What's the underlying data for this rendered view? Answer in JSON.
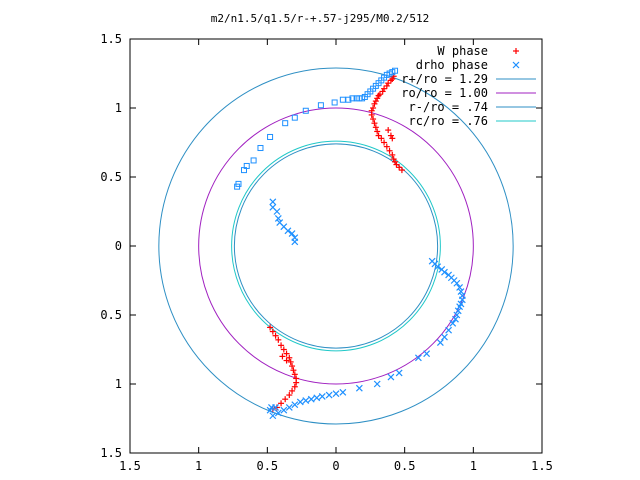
{
  "chart_data": {
    "type": "scatter",
    "title": "m2/n1.5/q1.5/r-+.57-j295/M0.2/512",
    "xlabel": "",
    "ylabel": "",
    "xlim": [
      -1.5,
      1.5
    ],
    "ylim": [
      -1.5,
      1.5
    ],
    "grid": false,
    "legend_position": "top-right",
    "xtick_values": [
      -1.5,
      -1,
      -0.5,
      0,
      0.5,
      1,
      1.5
    ],
    "xtick_labels": [
      "1.5",
      "1",
      "0.5",
      "0",
      "0.5",
      "1",
      "1.5"
    ],
    "ytick_values": [
      1.5,
      1,
      0.5,
      0,
      -0.5,
      -1,
      -1.5
    ],
    "ytick_labels": [
      "1.5",
      "1",
      "0.5",
      "0",
      "0.5",
      "1",
      "1.5"
    ],
    "circles": [
      {
        "name": "r+/ro = 1.29",
        "radius": 1.29,
        "color": "#2e8fc4"
      },
      {
        "name": "ro/ro = 1.00",
        "radius": 1.0,
        "color": "#a020c0"
      },
      {
        "name": "r-/ro = .74",
        "radius": 0.74,
        "color": "#2e8fc4"
      },
      {
        "name": "rc/ro = .76",
        "radius": 0.76,
        "color": "#20c8c8"
      }
    ],
    "series": [
      {
        "name": "W phase",
        "marker": "plus",
        "color": "#ff0000",
        "points": [
          [
            0.48,
            0.55
          ],
          [
            0.46,
            0.57
          ],
          [
            0.44,
            0.59
          ],
          [
            0.43,
            0.61
          ],
          [
            0.42,
            0.63
          ],
          [
            0.41,
            0.66
          ],
          [
            0.39,
            0.69
          ],
          [
            0.37,
            0.72
          ],
          [
            0.35,
            0.75
          ],
          [
            0.33,
            0.78
          ],
          [
            0.31,
            0.8
          ],
          [
            0.3,
            0.83
          ],
          [
            0.29,
            0.86
          ],
          [
            0.28,
            0.89
          ],
          [
            0.27,
            0.92
          ],
          [
            0.26,
            0.95
          ],
          [
            0.26,
            0.98
          ],
          [
            0.27,
            1.0
          ],
          [
            0.28,
            1.03
          ],
          [
            0.29,
            1.05
          ],
          [
            0.3,
            1.07
          ],
          [
            0.31,
            1.09
          ],
          [
            0.32,
            1.1
          ],
          [
            0.34,
            1.12
          ],
          [
            0.35,
            1.14
          ],
          [
            0.37,
            1.16
          ],
          [
            0.38,
            1.18
          ],
          [
            0.4,
            1.2
          ],
          [
            0.41,
            1.21
          ],
          [
            0.42,
            1.23
          ],
          [
            0.4,
            0.8
          ],
          [
            0.41,
            0.78
          ],
          [
            0.38,
            0.84
          ],
          [
            -0.48,
            -0.59
          ],
          [
            -0.46,
            -0.62
          ],
          [
            -0.44,
            -0.65
          ],
          [
            -0.42,
            -0.68
          ],
          [
            -0.4,
            -0.72
          ],
          [
            -0.38,
            -0.75
          ],
          [
            -0.36,
            -0.78
          ],
          [
            -0.34,
            -0.81
          ],
          [
            -0.33,
            -0.84
          ],
          [
            -0.32,
            -0.87
          ],
          [
            -0.31,
            -0.9
          ],
          [
            -0.3,
            -0.93
          ],
          [
            -0.29,
            -0.96
          ],
          [
            -0.29,
            -0.99
          ],
          [
            -0.3,
            -1.02
          ],
          [
            -0.32,
            -1.05
          ],
          [
            -0.34,
            -1.08
          ],
          [
            -0.37,
            -1.11
          ],
          [
            -0.4,
            -1.14
          ],
          [
            -0.43,
            -1.17
          ],
          [
            -0.46,
            -1.18
          ],
          [
            -0.36,
            -0.83
          ],
          [
            -0.39,
            -0.8
          ]
        ]
      },
      {
        "name": "drho phase",
        "marker": "cross",
        "color": "#1e90ff",
        "points": [
          [
            0.7,
            -0.11
          ],
          [
            0.72,
            -0.13
          ],
          [
            0.74,
            -0.15
          ],
          [
            0.77,
            -0.17
          ],
          [
            0.79,
            -0.19
          ],
          [
            0.82,
            -0.21
          ],
          [
            0.84,
            -0.23
          ],
          [
            0.86,
            -0.25
          ],
          [
            0.88,
            -0.27
          ],
          [
            0.9,
            -0.3
          ],
          [
            0.91,
            -0.33
          ],
          [
            0.92,
            -0.36
          ],
          [
            0.92,
            -0.39
          ],
          [
            0.91,
            -0.42
          ],
          [
            0.9,
            -0.44
          ],
          [
            0.89,
            -0.47
          ],
          [
            0.88,
            -0.5
          ],
          [
            0.87,
            -0.53
          ],
          [
            0.85,
            -0.56
          ],
          [
            0.82,
            -0.61
          ],
          [
            0.79,
            -0.66
          ],
          [
            0.76,
            -0.7
          ],
          [
            0.66,
            -0.78
          ],
          [
            0.6,
            -0.81
          ],
          [
            0.46,
            -0.92
          ],
          [
            0.4,
            -0.95
          ],
          [
            0.3,
            -1.0
          ],
          [
            0.17,
            -1.03
          ],
          [
            0.05,
            -1.06
          ],
          [
            0.0,
            -1.07
          ],
          [
            -0.05,
            -1.08
          ],
          [
            -0.1,
            -1.09
          ],
          [
            -0.14,
            -1.1
          ],
          [
            -0.18,
            -1.11
          ],
          [
            -0.22,
            -1.12
          ],
          [
            -0.26,
            -1.13
          ],
          [
            -0.3,
            -1.15
          ],
          [
            -0.34,
            -1.17
          ],
          [
            -0.38,
            -1.19
          ],
          [
            -0.42,
            -1.21
          ],
          [
            -0.46,
            -1.23
          ],
          [
            -0.48,
            -1.19
          ],
          [
            -0.47,
            -1.17
          ],
          [
            -0.44,
            -1.17
          ],
          [
            -0.43,
            0.25
          ],
          [
            -0.42,
            0.2
          ],
          [
            -0.41,
            0.17
          ],
          [
            -0.38,
            0.14
          ],
          [
            -0.35,
            0.11
          ],
          [
            -0.32,
            0.09
          ],
          [
            -0.3,
            0.06
          ],
          [
            -0.3,
            0.03
          ],
          [
            -0.46,
            0.32
          ],
          [
            -0.46,
            0.28
          ]
        ]
      },
      {
        "name": "",
        "marker": "square",
        "color": "#1e90ff",
        "points": [
          [
            -0.72,
            0.43
          ],
          [
            -0.71,
            0.45
          ],
          [
            -0.67,
            0.55
          ],
          [
            -0.65,
            0.58
          ],
          [
            -0.6,
            0.62
          ],
          [
            -0.55,
            0.71
          ],
          [
            -0.48,
            0.79
          ],
          [
            -0.37,
            0.89
          ],
          [
            -0.3,
            0.93
          ],
          [
            -0.22,
            0.98
          ],
          [
            -0.11,
            1.02
          ],
          [
            -0.01,
            1.04
          ],
          [
            0.05,
            1.06
          ],
          [
            0.09,
            1.06
          ],
          [
            0.12,
            1.07
          ],
          [
            0.15,
            1.07
          ],
          [
            0.17,
            1.07
          ],
          [
            0.19,
            1.07
          ],
          [
            0.21,
            1.08
          ],
          [
            0.23,
            1.1
          ],
          [
            0.25,
            1.12
          ],
          [
            0.27,
            1.14
          ],
          [
            0.29,
            1.16
          ],
          [
            0.31,
            1.18
          ],
          [
            0.33,
            1.2
          ],
          [
            0.35,
            1.22
          ],
          [
            0.37,
            1.24
          ],
          [
            0.39,
            1.25
          ],
          [
            0.41,
            1.26
          ],
          [
            0.43,
            1.27
          ]
        ]
      }
    ]
  }
}
